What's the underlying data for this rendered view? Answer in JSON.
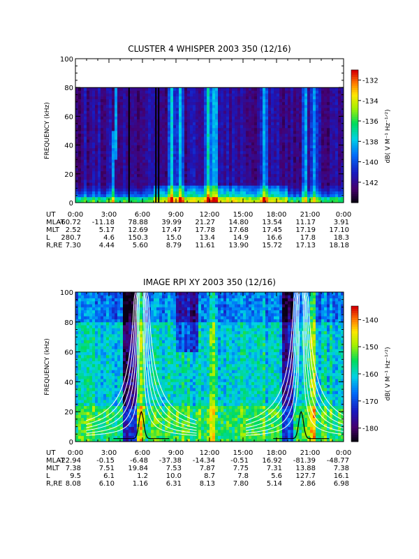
{
  "chart_data": [
    {
      "type": "heatmap",
      "title": "CLUSTER 4 WHISPER 2003 350 (12/16)",
      "ylabel": "FREQUENCY (kHz)",
      "ylim": [
        0,
        100
      ],
      "yticks": [
        0,
        20,
        40,
        60,
        80,
        100
      ],
      "xlim_hours": [
        0,
        24
      ],
      "data_ceiling_khz": 80,
      "colorbar": {
        "label": "dB( V M⁻¹ Hz⁻¹ᐟ²)",
        "ticks": [
          -132,
          -134,
          -136,
          -138,
          -140,
          -142
        ],
        "range": [
          -144,
          -131
        ]
      },
      "ephemeris": {
        "labels": [
          "UT",
          "MLAT",
          "MLT",
          "L",
          "R,RE"
        ],
        "columns": [
          [
            "0:00",
            "-60.72",
            "2.52",
            "280.7",
            "7.30"
          ],
          [
            "3:00",
            "-11.18",
            "5.17",
            "4.6",
            "4.44"
          ],
          [
            "6:00",
            "78.88",
            "12.69",
            "150.3",
            "5.60"
          ],
          [
            "9:00",
            "39.99",
            "17.47",
            "15.0",
            "8.79"
          ],
          [
            "12:00",
            "21.27",
            "17.78",
            "13.4",
            "11.61"
          ],
          [
            "15:00",
            "14.80",
            "17.68",
            "14.9",
            "13.90"
          ],
          [
            "18:00",
            "13.54",
            "17.45",
            "16.6",
            "15.72"
          ],
          [
            "21:00",
            "11.17",
            "17.19",
            "17.8",
            "17.13"
          ],
          [
            "0:00",
            "3.91",
            "17.10",
            "18.3",
            "18.18"
          ]
        ]
      }
    },
    {
      "type": "heatmap",
      "title": "IMAGE RPI XY 2003 350 (12/16)",
      "ylabel": "FREQUENCY (kHz)",
      "ylim": [
        0,
        100
      ],
      "yticks": [
        0,
        20,
        40,
        60,
        80,
        100
      ],
      "xlim_hours": [
        0,
        24
      ],
      "colorbar": {
        "label": "dB( V M⁻¹ Hz⁻¹ᐟ²)",
        "ticks": [
          -140,
          -150,
          -160,
          -170,
          -180
        ],
        "range": [
          -185,
          -135
        ]
      },
      "ephemeris": {
        "labels": [
          "UT",
          "MLAT",
          "MLT",
          "L",
          "R,RE"
        ],
        "columns": [
          [
            "0:00",
            "-22.94",
            "7.38",
            "9.5",
            "8.08"
          ],
          [
            "3:00",
            "-0.15",
            "7.51",
            "6.1",
            "6.10"
          ],
          [
            "6:00",
            "-6.48",
            "19.84",
            "1.2",
            "1.16"
          ],
          [
            "9:00",
            "-37.38",
            "7.53",
            "10.0",
            "6.31"
          ],
          [
            "12:00",
            "-14.34",
            "7.87",
            "8.7",
            "8.13"
          ],
          [
            "15:00",
            "-0.51",
            "7.75",
            "7.8",
            "7.80"
          ],
          [
            "18:00",
            "16.92",
            "7.31",
            "5.6",
            "5.14"
          ],
          [
            "21:00",
            "-81.39",
            "13.88",
            "127.7",
            "2.86"
          ],
          [
            "0:00",
            "-48.77",
            "7.38",
            "16.1",
            "6.98"
          ]
        ]
      }
    }
  ]
}
